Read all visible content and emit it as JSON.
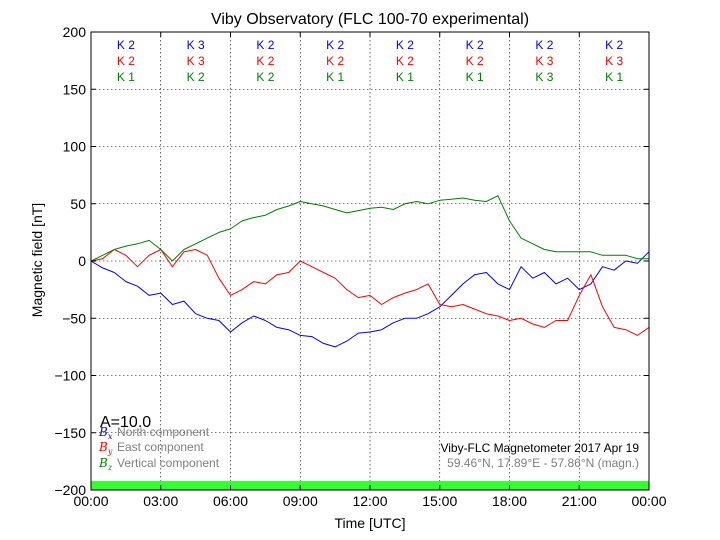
{
  "chart_data": {
    "type": "line",
    "title": "Viby Observatory (FLC 100-70 experimental)",
    "xlabel": "Time [UTC]",
    "ylabel": "Magnetic field [nT]",
    "xlim": [
      0,
      24
    ],
    "ylim": [
      -200,
      200
    ],
    "grid": true,
    "legend_placement": "bottom-left",
    "x_ticks": [
      {
        "value": 0,
        "label": "00:00"
      },
      {
        "value": 3,
        "label": "03:00"
      },
      {
        "value": 6,
        "label": "06:00"
      },
      {
        "value": 9,
        "label": "09:00"
      },
      {
        "value": 12,
        "label": "12:00"
      },
      {
        "value": 15,
        "label": "15:00"
      },
      {
        "value": 18,
        "label": "18:00"
      },
      {
        "value": 21,
        "label": "21:00"
      },
      {
        "value": 24,
        "label": "00:00"
      }
    ],
    "y_ticks": [
      {
        "value": -200,
        "label": "−200"
      },
      {
        "value": -150,
        "label": "−150"
      },
      {
        "value": -100,
        "label": "−100"
      },
      {
        "value": -50,
        "label": "−50"
      },
      {
        "value": 0,
        "label": "0"
      },
      {
        "value": 50,
        "label": "50"
      },
      {
        "value": 100,
        "label": "100"
      },
      {
        "value": 150,
        "label": "150"
      },
      {
        "value": 200,
        "label": "200"
      }
    ],
    "k_indices": {
      "blue": [
        "K 2",
        "K 3",
        "K 2",
        "K 2",
        "K 2",
        "K 2",
        "K 2",
        "K 2"
      ],
      "red": [
        "K 2",
        "K 3",
        "K 2",
        "K 2",
        "K 2",
        "K 2",
        "K 3",
        "K 3"
      ],
      "green": [
        "K 1",
        "K 2",
        "K 2",
        "K 1",
        "K 1",
        "K 1",
        "K 3",
        "K 1"
      ]
    },
    "a_index": "A=10.0",
    "info_line1": "Viby-FLC Magnetometer 2017 Apr 19",
    "info_line2": "59.46°N, 17.89°E - 57.86°N (magn.)",
    "activity_band": {
      "color": "#33ff33",
      "from": -200,
      "to": -192
    },
    "series": [
      {
        "name": "North component",
        "symbol": "B",
        "subscript": "x",
        "color": "#0000ff",
        "x": [
          0.0,
          0.5,
          1.0,
          1.5,
          2.0,
          2.5,
          3.0,
          3.5,
          4.0,
          4.5,
          5.0,
          5.5,
          6.0,
          6.5,
          7.0,
          7.5,
          8.0,
          8.5,
          9.0,
          9.5,
          10.0,
          10.5,
          11.0,
          11.5,
          12.0,
          12.5,
          13.0,
          13.5,
          14.0,
          14.5,
          15.0,
          15.5,
          16.0,
          16.5,
          17.0,
          17.5,
          18.0,
          18.5,
          19.0,
          19.5,
          20.0,
          20.5,
          21.0,
          21.5,
          22.0,
          22.5,
          23.0,
          23.5,
          24.0
        ],
        "values": [
          0,
          -6,
          -10,
          -18,
          -22,
          -30,
          -28,
          -38,
          -35,
          -46,
          -50,
          -52,
          -62,
          -54,
          -48,
          -52,
          -58,
          -60,
          -65,
          -66,
          -72,
          -75,
          -70,
          -63,
          -62,
          -60,
          -54,
          -50,
          -50,
          -46,
          -40,
          -30,
          -20,
          -12,
          -10,
          -20,
          -25,
          -5,
          -15,
          -10,
          -20,
          -15,
          -25,
          -20,
          -5,
          -8,
          0,
          -2,
          8
        ]
      },
      {
        "name": "East component",
        "symbol": "B",
        "subscript": "y",
        "color": "#ff0000",
        "x": [
          0.0,
          0.5,
          1.0,
          1.5,
          2.0,
          2.5,
          3.0,
          3.5,
          4.0,
          4.5,
          5.0,
          5.5,
          6.0,
          6.5,
          7.0,
          7.5,
          8.0,
          8.5,
          9.0,
          9.5,
          10.0,
          10.5,
          11.0,
          11.5,
          12.0,
          12.5,
          13.0,
          13.5,
          14.0,
          14.5,
          15.0,
          15.5,
          16.0,
          16.5,
          17.0,
          17.5,
          18.0,
          18.5,
          19.0,
          19.5,
          20.0,
          20.5,
          21.0,
          21.5,
          22.0,
          22.5,
          23.0,
          23.5,
          24.0
        ],
        "values": [
          0,
          2,
          10,
          5,
          -5,
          5,
          10,
          -5,
          8,
          10,
          5,
          -15,
          -30,
          -25,
          -18,
          -20,
          -12,
          -10,
          0,
          -5,
          -10,
          -15,
          -25,
          -32,
          -30,
          -38,
          -32,
          -28,
          -25,
          -20,
          -38,
          -40,
          -38,
          -42,
          -46,
          -48,
          -52,
          -50,
          -55,
          -58,
          -52,
          -52,
          -30,
          -12,
          -40,
          -58,
          -60,
          -65,
          -58
        ]
      },
      {
        "name": "Vertical component",
        "symbol": "B",
        "subscript": "z",
        "color": "#008000",
        "x": [
          0.0,
          0.5,
          1.0,
          1.5,
          2.0,
          2.5,
          3.0,
          3.5,
          4.0,
          4.5,
          5.0,
          5.5,
          6.0,
          6.5,
          7.0,
          7.5,
          8.0,
          8.5,
          9.0,
          9.5,
          10.0,
          10.5,
          11.0,
          11.5,
          12.0,
          12.5,
          13.0,
          13.5,
          14.0,
          14.5,
          15.0,
          15.5,
          16.0,
          16.5,
          17.0,
          17.5,
          18.0,
          18.5,
          19.0,
          19.5,
          20.0,
          20.5,
          21.0,
          21.5,
          22.0,
          22.5,
          23.0,
          23.5,
          24.0
        ],
        "values": [
          0,
          5,
          10,
          13,
          15,
          18,
          10,
          0,
          10,
          15,
          20,
          25,
          28,
          35,
          38,
          40,
          45,
          48,
          52,
          50,
          48,
          45,
          42,
          44,
          46,
          47,
          45,
          50,
          52,
          50,
          53,
          54,
          55,
          53,
          52,
          57,
          35,
          20,
          15,
          10,
          8,
          8,
          8,
          8,
          5,
          5,
          5,
          2,
          2
        ]
      }
    ]
  }
}
